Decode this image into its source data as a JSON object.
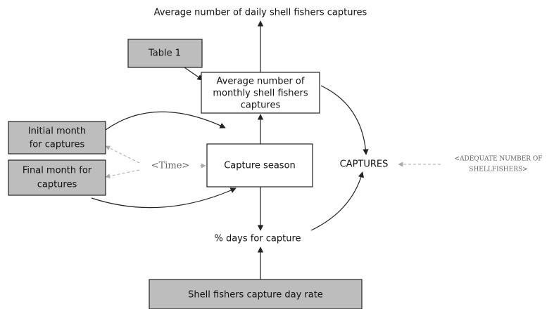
{
  "nodes": [
    {
      "lines": [
        "Average number of daily shell fishers captures"
      ]
    },
    {
      "lines": [
        "Table 1"
      ]
    },
    {
      "lines": [
        "Average number of",
        "monthly shell fishers",
        "captures"
      ]
    },
    {
      "lines": [
        "Initial month",
        "for captures"
      ]
    },
    {
      "lines": [
        "Final month for",
        "captures"
      ]
    },
    {
      "lines": [
        "<Time>"
      ]
    },
    {
      "lines": [
        "Capture season"
      ]
    },
    {
      "lines": [
        "CAPTURES"
      ]
    },
    {
      "lines": [
        "<ADEQUATE NUMBER OF",
        "SHELLFISHERS>"
      ]
    },
    {
      "lines": [
        "% days for capture"
      ]
    },
    {
      "lines": [
        "Shell fishers capture day rate"
      ]
    }
  ]
}
